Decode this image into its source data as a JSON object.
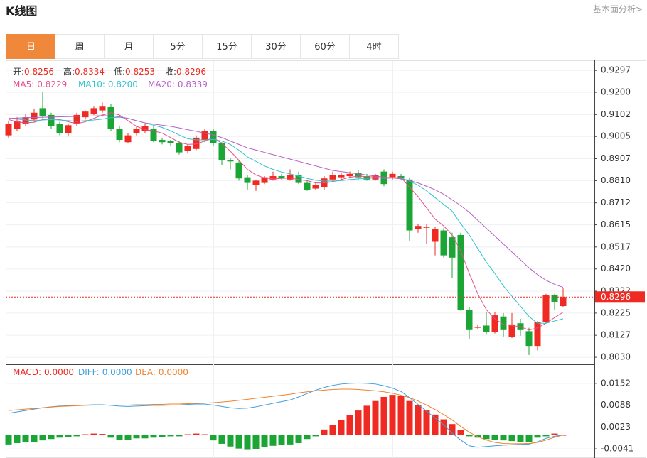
{
  "header": {
    "title": "K线图",
    "link": "基本面分析>"
  },
  "tabs": [
    "日",
    "周",
    "月",
    "5分",
    "15分",
    "30分",
    "60分",
    "4时"
  ],
  "active_tab": 0,
  "chart_data": [
    {
      "type": "candlestick",
      "ohlc_labels": [
        "开:",
        "高:",
        "低:",
        "收:"
      ],
      "up_color": "#ee2a22",
      "down_color": "#1ba534",
      "label_color": "#ee2a22",
      "open": [
        0.901,
        0.904,
        0.906,
        0.908,
        0.913,
        0.91,
        0.906,
        0.902,
        0.906,
        0.909,
        0.9105,
        0.912,
        0.9135,
        0.904,
        0.898,
        0.902,
        0.903,
        0.904,
        0.899,
        0.8985,
        0.8975,
        0.894,
        0.895,
        0.899,
        0.903,
        0.8975,
        0.89,
        0.889,
        0.8825,
        0.879,
        0.88,
        0.8815,
        0.883,
        0.8815,
        0.8835,
        0.88,
        0.8775,
        0.878,
        0.8815,
        0.8825,
        0.883,
        0.8845,
        0.883,
        0.8815,
        0.885,
        0.8825,
        0.883,
        0.8815,
        0.8595,
        0.8605,
        0.854,
        0.859,
        0.856,
        0.857,
        0.824,
        0.816,
        0.817,
        0.814,
        0.821,
        0.812,
        0.818,
        0.8145,
        0.808,
        0.8185,
        0.8305,
        0.8256
      ],
      "high": [
        0.9075,
        0.909,
        0.9105,
        0.9125,
        0.92,
        0.911,
        0.907,
        0.906,
        0.911,
        0.912,
        0.914,
        0.9155,
        0.915,
        0.905,
        0.902,
        0.905,
        0.906,
        0.905,
        0.9,
        0.899,
        0.8985,
        0.897,
        0.901,
        0.904,
        0.904,
        0.898,
        0.891,
        0.89,
        0.8835,
        0.8815,
        0.883,
        0.885,
        0.884,
        0.886,
        0.885,
        0.881,
        0.88,
        0.883,
        0.885,
        0.8845,
        0.885,
        0.8855,
        0.884,
        0.884,
        0.886,
        0.885,
        0.884,
        0.8825,
        0.862,
        0.862,
        0.8605,
        0.86,
        0.858,
        0.858,
        0.825,
        0.8175,
        0.823,
        0.823,
        0.8225,
        0.8225,
        0.82,
        0.816,
        0.819,
        0.831,
        0.831,
        0.8334
      ],
      "low": [
        0.9,
        0.903,
        0.905,
        0.907,
        0.9085,
        0.904,
        0.901,
        0.9005,
        0.905,
        0.908,
        0.91,
        0.911,
        0.903,
        0.898,
        0.8975,
        0.901,
        0.902,
        0.898,
        0.897,
        0.8965,
        0.8925,
        0.893,
        0.8945,
        0.898,
        0.8965,
        0.888,
        0.886,
        0.881,
        0.877,
        0.8765,
        0.8795,
        0.881,
        0.8815,
        0.881,
        0.8795,
        0.8765,
        0.877,
        0.877,
        0.881,
        0.8815,
        0.882,
        0.8815,
        0.881,
        0.881,
        0.8785,
        0.8815,
        0.8815,
        0.8545,
        0.858,
        0.853,
        0.848,
        0.847,
        0.838,
        0.8235,
        0.811,
        0.8155,
        0.813,
        0.8135,
        0.812,
        0.8115,
        0.8125,
        0.804,
        0.806,
        0.818,
        0.824,
        0.8253
      ],
      "close": [
        0.906,
        0.9075,
        0.909,
        0.911,
        0.9095,
        0.905,
        0.902,
        0.9055,
        0.91,
        0.9115,
        0.913,
        0.914,
        0.904,
        0.899,
        0.901,
        0.904,
        0.905,
        0.8985,
        0.898,
        0.8975,
        0.8935,
        0.8965,
        0.9,
        0.903,
        0.8975,
        0.89,
        0.8895,
        0.882,
        0.88,
        0.881,
        0.8825,
        0.883,
        0.882,
        0.8835,
        0.88,
        0.877,
        0.879,
        0.882,
        0.8835,
        0.8835,
        0.884,
        0.8825,
        0.8815,
        0.8835,
        0.8795,
        0.884,
        0.882,
        0.859,
        0.861,
        0.8605,
        0.8595,
        0.848,
        0.847,
        0.824,
        0.815,
        0.8165,
        0.814,
        0.8215,
        0.815,
        0.8175,
        0.815,
        0.808,
        0.8185,
        0.8305,
        0.8275,
        0.8296
      ],
      "series": [
        {
          "label": "MA5:",
          "legend_value": "0.8229",
          "color": "#e8508a",
          "values": [
            0.908,
            0.907,
            0.9065,
            0.9068,
            0.908,
            0.9085,
            0.908,
            0.907,
            0.9062,
            0.907,
            0.9085,
            0.91,
            0.911,
            0.91,
            0.9075,
            0.905,
            0.9035,
            0.903,
            0.902,
            0.9,
            0.898,
            0.897,
            0.8972,
            0.8985,
            0.9,
            0.8975,
            0.894,
            0.89,
            0.886,
            0.8835,
            0.8822,
            0.8818,
            0.882,
            0.8822,
            0.8815,
            0.881,
            0.88,
            0.88,
            0.8805,
            0.8815,
            0.8825,
            0.883,
            0.8828,
            0.8826,
            0.882,
            0.8822,
            0.8825,
            0.878,
            0.874,
            0.869,
            0.864,
            0.861,
            0.857,
            0.85,
            0.84,
            0.831,
            0.824,
            0.82,
            0.8175,
            0.817,
            0.8165,
            0.815,
            0.816,
            0.818,
            0.8205,
            0.8229
          ]
        },
        {
          "label": "MA10:",
          "legend_value": "0.8200",
          "color": "#2ec4cc",
          "values": [
            0.9085,
            0.9082,
            0.9078,
            0.9075,
            0.9078,
            0.908,
            0.9078,
            0.9075,
            0.9072,
            0.9075,
            0.9078,
            0.9082,
            0.9088,
            0.909,
            0.9085,
            0.9075,
            0.9065,
            0.9055,
            0.9045,
            0.903,
            0.9012,
            0.8995,
            0.899,
            0.899,
            0.8992,
            0.8985,
            0.897,
            0.8945,
            0.8915,
            0.8895,
            0.8875,
            0.886,
            0.8848,
            0.884,
            0.883,
            0.882,
            0.8812,
            0.8808,
            0.8808,
            0.881,
            0.8815,
            0.8818,
            0.882,
            0.8822,
            0.8822,
            0.8822,
            0.8822,
            0.8808,
            0.879,
            0.8765,
            0.8735,
            0.8705,
            0.8675,
            0.862,
            0.857,
            0.851,
            0.845,
            0.84,
            0.8345,
            0.83,
            0.8255,
            0.821,
            0.818,
            0.818,
            0.819,
            0.82
          ]
        },
        {
          "label": "MA20:",
          "legend_value": "0.8339",
          "color": "#b55fc6",
          "values": [
            0.9085,
            0.9086,
            0.9088,
            0.9089,
            0.909,
            0.9091,
            0.9092,
            0.9093,
            0.9094,
            0.9095,
            0.9096,
            0.9097,
            0.9096,
            0.9092,
            0.9085,
            0.9075,
            0.9065,
            0.906,
            0.9055,
            0.905,
            0.9043,
            0.9035,
            0.9028,
            0.902,
            0.9012,
            0.9,
            0.8985,
            0.897,
            0.8955,
            0.8945,
            0.8935,
            0.8925,
            0.8915,
            0.8905,
            0.8895,
            0.8885,
            0.8875,
            0.8865,
            0.8855,
            0.885,
            0.8845,
            0.884,
            0.8835,
            0.883,
            0.8826,
            0.8822,
            0.8818,
            0.881,
            0.88,
            0.8785,
            0.877,
            0.875,
            0.8725,
            0.87,
            0.867,
            0.8635,
            0.86,
            0.8565,
            0.853,
            0.8495,
            0.846,
            0.8425,
            0.8395,
            0.837,
            0.8352,
            0.8339
          ]
        }
      ],
      "ylim": [
        0.8002,
        0.9332
      ],
      "yticks": [
        0.9297,
        {
          "value": 0.92,
          "label": "0.9200"
        },
        0.9102,
        0.9005,
        0.8907,
        {
          "value": 0.881,
          "label": "0.8810"
        },
        0.8712,
        0.8615,
        0.8517,
        {
          "value": 0.842,
          "label": "0.8420"
        },
        0.8322,
        0.8225,
        0.8127,
        {
          "value": 0.803,
          "label": "0.8030"
        }
      ],
      "grid": true
    },
    {
      "type": "macd",
      "up_color": "#ee2a22",
      "down_color": "#1ba534",
      "series": [
        {
          "label": "MACD:",
          "legend_value": "0.0000",
          "color": "#ee2a22",
          "style": "bar",
          "values": [
            -0.0028,
            -0.0024,
            -0.0022,
            -0.002,
            -0.0016,
            -0.0012,
            -0.0008,
            -0.0006,
            -0.0004,
            0.0002,
            0.0004,
            0.0003,
            -0.0008,
            -0.0014,
            -0.0014,
            -0.001,
            -0.001,
            -0.0008,
            -0.0006,
            -0.0004,
            -0.0004,
            0.0002,
            0.0004,
            0.0002,
            -0.0016,
            -0.0026,
            -0.0034,
            -0.004,
            -0.0044,
            -0.0042,
            -0.0036,
            -0.0032,
            -0.003,
            -0.0028,
            -0.0024,
            -0.0012,
            -0.0004,
            0.0016,
            0.003,
            0.0044,
            0.0058,
            0.0072,
            0.0086,
            0.01,
            0.0112,
            0.0118,
            0.0114,
            0.01,
            0.0088,
            0.0074,
            0.006,
            0.0046,
            0.0032,
            0.0014,
            -0.0004,
            -0.0008,
            -0.0012,
            -0.0014,
            -0.0016,
            -0.0018,
            -0.002,
            -0.0022,
            -0.0008,
            -0.0004,
            0.0004,
            0
          ]
        },
        {
          "label": "DIFF:",
          "legend_value": "0.0000",
          "color": "#3f9fe0",
          "style": "line",
          "values": [
            0.0064,
            0.0068,
            0.0072,
            0.0076,
            0.008,
            0.0083,
            0.0085,
            0.0086,
            0.0087,
            0.0088,
            0.0089,
            0.0089,
            0.0087,
            0.0085,
            0.0084,
            0.0085,
            0.0086,
            0.0087,
            0.0087,
            0.0088,
            0.0088,
            0.009,
            0.0091,
            0.0091,
            0.0088,
            0.0084,
            0.008,
            0.0078,
            0.0079,
            0.0083,
            0.0088,
            0.0093,
            0.0098,
            0.0103,
            0.0112,
            0.0122,
            0.0132,
            0.014,
            0.0146,
            0.015,
            0.0152,
            0.0153,
            0.0152,
            0.015,
            0.0145,
            0.0138,
            0.0128,
            0.011,
            0.009,
            0.007,
            0.005,
            0.003,
            0.0005,
            -0.0015,
            -0.0032,
            -0.0036,
            -0.0034,
            -0.0032,
            -0.003,
            -0.0029,
            -0.0028,
            -0.0027,
            -0.002,
            -0.001,
            -0.0004,
            0
          ]
        },
        {
          "label": "DEA:",
          "legend_value": "0.0000",
          "color": "#f0822a",
          "style": "line",
          "values": [
            0.0072,
            0.0074,
            0.0076,
            0.0078,
            0.008,
            0.0082,
            0.0084,
            0.0085,
            0.0086,
            0.0087,
            0.0088,
            0.0088,
            0.0088,
            0.0088,
            0.0088,
            0.0089,
            0.0089,
            0.009,
            0.009,
            0.0091,
            0.0091,
            0.0092,
            0.0093,
            0.0094,
            0.0095,
            0.0097,
            0.0099,
            0.0102,
            0.0105,
            0.0108,
            0.0111,
            0.0114,
            0.0117,
            0.012,
            0.0124,
            0.0127,
            0.013,
            0.0132,
            0.0134,
            0.0135,
            0.0135,
            0.0134,
            0.0132,
            0.013,
            0.0127,
            0.0123,
            0.0117,
            0.011,
            0.01,
            0.0088,
            0.0075,
            0.006,
            0.0044,
            0.0025,
            0.0008,
            -0.0005,
            -0.0015,
            -0.0022,
            -0.0025,
            -0.0026,
            -0.0026,
            -0.0025,
            -0.0022,
            -0.0015,
            -0.0007,
            0
          ]
        }
      ],
      "ylim": [
        -0.0068,
        0.0204
      ],
      "yticks": [
        0.0152,
        0.0088,
        0.0023,
        -0.0041
      ],
      "grid": true
    }
  ]
}
